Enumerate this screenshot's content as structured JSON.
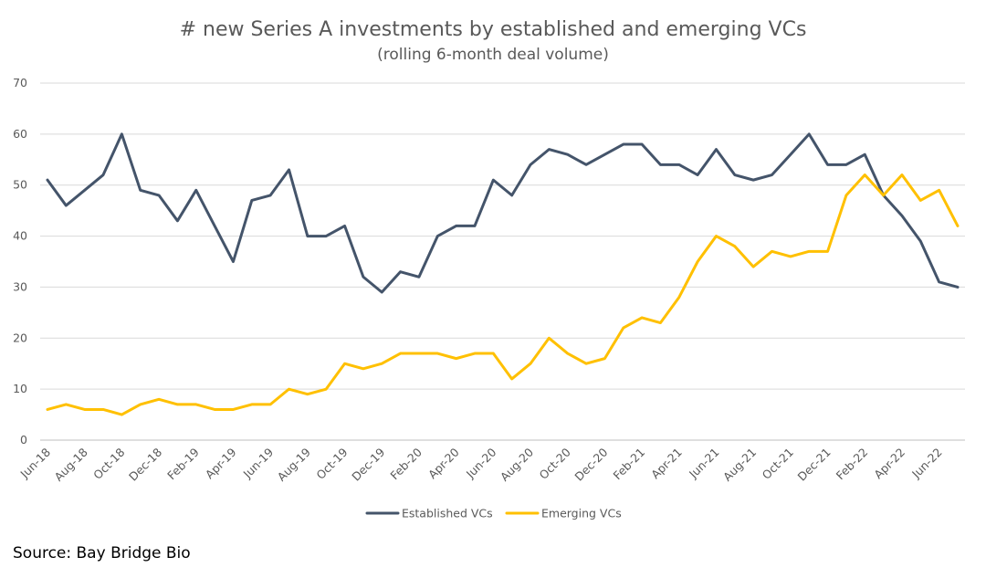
{
  "chart_data": {
    "type": "line",
    "title": "# new Series A investments by established and emerging VCs",
    "subtitle": "(rolling 6-month deal volume)",
    "x": [
      "Jun-18",
      "Jul-18",
      "Aug-18",
      "Sep-18",
      "Oct-18",
      "Nov-18",
      "Dec-18",
      "Jan-19",
      "Feb-19",
      "Mar-19",
      "Apr-19",
      "May-19",
      "Jun-19",
      "Jul-19",
      "Aug-19",
      "Sep-19",
      "Oct-19",
      "Nov-19",
      "Dec-19",
      "Jan-20",
      "Feb-20",
      "Mar-20",
      "Apr-20",
      "May-20",
      "Jun-20",
      "Jul-20",
      "Aug-20",
      "Sep-20",
      "Oct-20",
      "Nov-20",
      "Dec-20",
      "Jan-21",
      "Feb-21",
      "Mar-21",
      "Apr-21",
      "May-21",
      "Jun-21",
      "Jul-21",
      "Aug-21",
      "Sep-21",
      "Oct-21",
      "Nov-21",
      "Dec-21",
      "Jan-22",
      "Feb-22",
      "Mar-22",
      "Apr-22",
      "May-22",
      "Jun-22",
      "Jul-22"
    ],
    "x_tick_labels": [
      "Jun-18",
      "Aug-18",
      "Oct-18",
      "Dec-18",
      "Feb-19",
      "Apr-19",
      "Jun-19",
      "Aug-19",
      "Oct-19",
      "Dec-19",
      "Feb-20",
      "Apr-20",
      "Jun-20",
      "Aug-20",
      "Oct-20",
      "Dec-20",
      "Feb-21",
      "Apr-21",
      "Jun-21",
      "Aug-21",
      "Oct-21",
      "Dec-21",
      "Feb-22",
      "Apr-22",
      "Jun-22"
    ],
    "ylim": [
      0,
      70
    ],
    "y_ticks": [
      0,
      10,
      20,
      30,
      40,
      50,
      60,
      70
    ],
    "grid": true,
    "legend_position": "bottom",
    "series": [
      {
        "name": "Established VCs",
        "color": "#44546a",
        "values": [
          51,
          46,
          49,
          52,
          60,
          49,
          48,
          43,
          49,
          42,
          35,
          47,
          48,
          53,
          40,
          40,
          42,
          32,
          29,
          33,
          32,
          40,
          42,
          42,
          51,
          48,
          54,
          57,
          56,
          54,
          56,
          58,
          58,
          54,
          54,
          52,
          57,
          52,
          51,
          52,
          56,
          60,
          54,
          54,
          56,
          48,
          44,
          39,
          31,
          30
        ]
      },
      {
        "name": "Emerging VCs",
        "color": "#ffc000",
        "values": [
          6,
          7,
          6,
          6,
          5,
          7,
          8,
          7,
          7,
          6,
          6,
          7,
          7,
          10,
          9,
          10,
          15,
          14,
          15,
          17,
          17,
          17,
          16,
          17,
          17,
          12,
          15,
          20,
          17,
          15,
          16,
          22,
          24,
          23,
          28,
          35,
          40,
          38,
          34,
          37,
          36,
          37,
          37,
          48,
          52,
          48,
          52,
          47,
          49,
          42
        ]
      }
    ]
  },
  "source": "Source: Bay Bridge Bio"
}
